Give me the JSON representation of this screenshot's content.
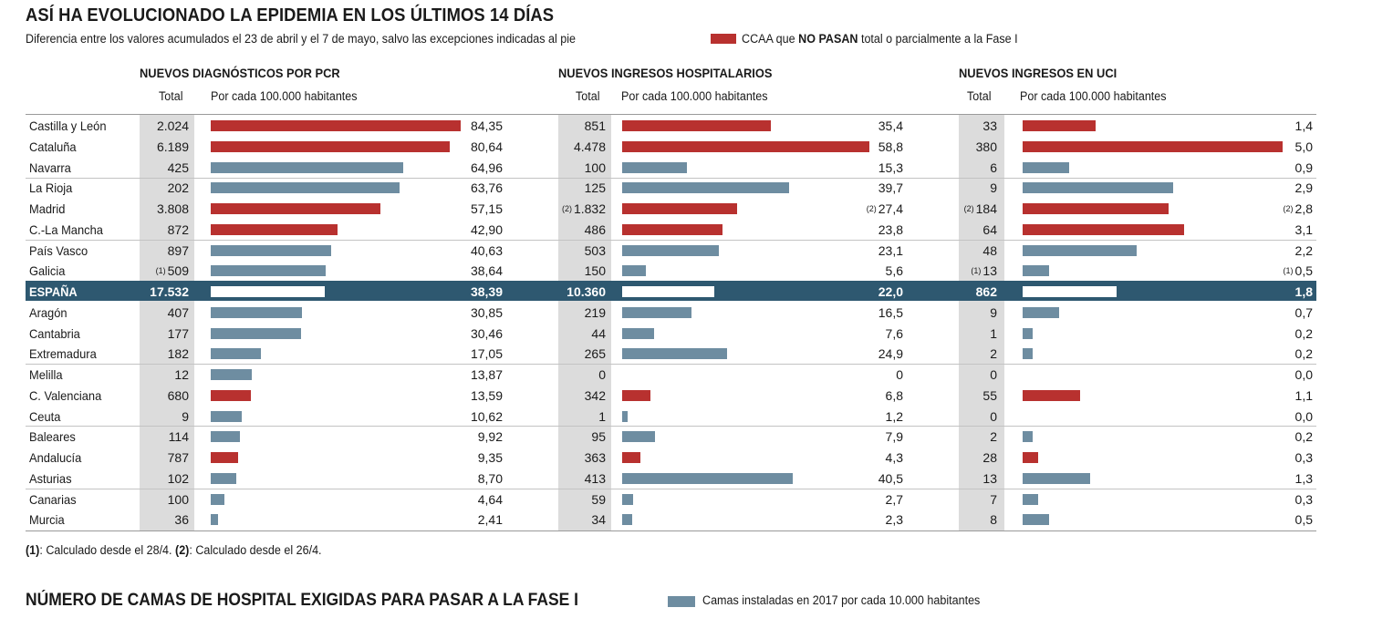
{
  "title": "ASÍ HA EVOLUCIONADO LA EPIDEMIA EN LOS ÚLTIMOS 14 DÍAS",
  "subtitle": "Diferencia entre los valores acumulados el 23 de abril y el 7 de mayo, salvo las excepciones indicadas al pie",
  "legend": {
    "pre": "CCAA que ",
    "bold": "NO PASAN",
    "post": " total o parcialmente a la Fase I",
    "color": "#b8312f"
  },
  "colors": {
    "red": "#b8312f",
    "blue": "#6e8da1",
    "highlight": "#2e5870"
  },
  "sections": [
    {
      "title": "NUEVOS DIAGNÓSTICOS POR PCR",
      "total_label": "Total",
      "rate_label": "Por cada 100.000 habitantes"
    },
    {
      "title": "NUEVOS INGRESOS HOSPITALARIOS",
      "total_label": "Total",
      "rate_label": "Por cada 100.000 habitantes"
    },
    {
      "title": "NUEVOS INGRESOS EN UCI",
      "total_label": "Total",
      "rate_label": "Por cada 100.000 habitantes"
    }
  ],
  "chart_data": {
    "type": "bar",
    "title": "ASÍ HA EVOLUCIONADO LA EPIDEMIA EN LOS ÚLTIMOS 14 DÍAS",
    "series_names": [
      "NUEVOS DIAGNÓSTICOS POR PCR",
      "NUEVOS INGRESOS HOSPITALARIOS",
      "NUEVOS INGRESOS EN UCI"
    ],
    "scale_max": [
      84.35,
      58.8,
      5.0
    ],
    "rows": [
      {
        "name": "Castilla y León",
        "no_pasa": true,
        "pcr": {
          "total": "2.024",
          "rate": "84,35",
          "value": 84.35
        },
        "hosp": {
          "total": "851",
          "rate": "35,4",
          "value": 35.4
        },
        "uci": {
          "total": "33",
          "rate": "1,4",
          "value": 1.4
        }
      },
      {
        "name": "Cataluña",
        "no_pasa": true,
        "pcr": {
          "total": "6.189",
          "rate": "80,64",
          "value": 80.64
        },
        "hosp": {
          "total": "4.478",
          "rate": "58,8",
          "value": 58.8
        },
        "uci": {
          "total": "380",
          "rate": "5,0",
          "value": 5.0
        }
      },
      {
        "name": "Navarra",
        "no_pasa": false,
        "pcr": {
          "total": "425",
          "rate": "64,96",
          "value": 64.96
        },
        "hosp": {
          "total": "100",
          "rate": "15,3",
          "value": 15.3
        },
        "uci": {
          "total": "6",
          "rate": "0,9",
          "value": 0.9
        }
      },
      {
        "name": "La Rioja",
        "no_pasa": false,
        "pcr": {
          "total": "202",
          "rate": "63,76",
          "value": 63.76
        },
        "hosp": {
          "total": "125",
          "rate": "39,7",
          "value": 39.7
        },
        "uci": {
          "total": "9",
          "rate": "2,9",
          "value": 2.9
        }
      },
      {
        "name": "Madrid",
        "no_pasa": true,
        "pcr": {
          "total": "3.808",
          "rate": "57,15",
          "value": 57.15
        },
        "hosp": {
          "total": "1.832",
          "rate": "27,4",
          "value": 27.4,
          "note": "(2)"
        },
        "uci": {
          "total": "184",
          "rate": "2,8",
          "value": 2.8,
          "note": "(2)"
        }
      },
      {
        "name": "C.-La Mancha",
        "no_pasa": true,
        "pcr": {
          "total": "872",
          "rate": "42,90",
          "value": 42.9
        },
        "hosp": {
          "total": "486",
          "rate": "23,8",
          "value": 23.8
        },
        "uci": {
          "total": "64",
          "rate": "3,1",
          "value": 3.1
        }
      },
      {
        "name": "País Vasco",
        "no_pasa": false,
        "pcr": {
          "total": "897",
          "rate": "40,63",
          "value": 40.63
        },
        "hosp": {
          "total": "503",
          "rate": "23,1",
          "value": 23.1
        },
        "uci": {
          "total": "48",
          "rate": "2,2",
          "value": 2.2
        }
      },
      {
        "name": "Galicia",
        "no_pasa": false,
        "pcr": {
          "total": "509",
          "rate": "38,64",
          "value": 38.64,
          "note": "(1)"
        },
        "hosp": {
          "total": "150",
          "rate": "5,6",
          "value": 5.6
        },
        "uci": {
          "total": "13",
          "rate": "0,5",
          "value": 0.5,
          "note": "(1)"
        }
      },
      {
        "name": "ESPAÑA",
        "highlight": true,
        "pcr": {
          "total": "17.532",
          "rate": "38,39",
          "value": 38.39
        },
        "hosp": {
          "total": "10.360",
          "rate": "22,0",
          "value": 22.0
        },
        "uci": {
          "total": "862",
          "rate": "1,8",
          "value": 1.8
        }
      },
      {
        "name": "Aragón",
        "no_pasa": false,
        "pcr": {
          "total": "407",
          "rate": "30,85",
          "value": 30.85
        },
        "hosp": {
          "total": "219",
          "rate": "16,5",
          "value": 16.5
        },
        "uci": {
          "total": "9",
          "rate": "0,7",
          "value": 0.7
        }
      },
      {
        "name": "Cantabria",
        "no_pasa": false,
        "pcr": {
          "total": "177",
          "rate": "30,46",
          "value": 30.46
        },
        "hosp": {
          "total": "44",
          "rate": "7,6",
          "value": 7.6
        },
        "uci": {
          "total": "1",
          "rate": "0,2",
          "value": 0.2
        }
      },
      {
        "name": "Extremadura",
        "no_pasa": false,
        "pcr": {
          "total": "182",
          "rate": "17,05",
          "value": 17.05
        },
        "hosp": {
          "total": "265",
          "rate": "24,9",
          "value": 24.9
        },
        "uci": {
          "total": "2",
          "rate": "0,2",
          "value": 0.2
        }
      },
      {
        "name": "Melilla",
        "no_pasa": false,
        "pcr": {
          "total": "12",
          "rate": "13,87",
          "value": 13.87
        },
        "hosp": {
          "total": "0",
          "rate": "0",
          "value": 0
        },
        "uci": {
          "total": "0",
          "rate": "0,0",
          "value": 0
        }
      },
      {
        "name": "C. Valenciana",
        "no_pasa": true,
        "pcr": {
          "total": "680",
          "rate": "13,59",
          "value": 13.59
        },
        "hosp": {
          "total": "342",
          "rate": "6,8",
          "value": 6.8
        },
        "uci": {
          "total": "55",
          "rate": "1,1",
          "value": 1.1
        }
      },
      {
        "name": "Ceuta",
        "no_pasa": false,
        "pcr": {
          "total": "9",
          "rate": "10,62",
          "value": 10.62
        },
        "hosp": {
          "total": "1",
          "rate": "1,2",
          "value": 1.2
        },
        "uci": {
          "total": "0",
          "rate": "0,0",
          "value": 0
        }
      },
      {
        "name": "Baleares",
        "no_pasa": false,
        "pcr": {
          "total": "114",
          "rate": "9,92",
          "value": 9.92
        },
        "hosp": {
          "total": "95",
          "rate": "7,9",
          "value": 7.9
        },
        "uci": {
          "total": "2",
          "rate": "0,2",
          "value": 0.2
        }
      },
      {
        "name": "Andalucía",
        "no_pasa": true,
        "pcr": {
          "total": "787",
          "rate": "9,35",
          "value": 9.35
        },
        "hosp": {
          "total": "363",
          "rate": "4,3",
          "value": 4.3
        },
        "uci": {
          "total": "28",
          "rate": "0,3",
          "value": 0.3
        }
      },
      {
        "name": "Asturias",
        "no_pasa": false,
        "pcr": {
          "total": "102",
          "rate": "8,70",
          "value": 8.7
        },
        "hosp": {
          "total": "413",
          "rate": "40,5",
          "value": 40.5
        },
        "uci": {
          "total": "13",
          "rate": "1,3",
          "value": 1.3
        }
      },
      {
        "name": "Canarias",
        "no_pasa": false,
        "pcr": {
          "total": "100",
          "rate": "4,64",
          "value": 4.64
        },
        "hosp": {
          "total": "59",
          "rate": "2,7",
          "value": 2.7
        },
        "uci": {
          "total": "7",
          "rate": "0,3",
          "value": 0.3
        }
      },
      {
        "name": "Murcia",
        "no_pasa": false,
        "pcr": {
          "total": "36",
          "rate": "2,41",
          "value": 2.41
        },
        "hosp": {
          "total": "34",
          "rate": "2,3",
          "value": 2.3
        },
        "uci": {
          "total": "8",
          "rate": "0,5",
          "value": 0.5
        }
      }
    ]
  },
  "footnote": {
    "n1": "(1)",
    "t1": ": Calculado desde el 28/4. ",
    "n2": "(2)",
    "t2": ": Calculado desde el 26/4."
  },
  "bottom": {
    "title": "NÚMERO DE CAMAS DE HOSPITAL EXIGIDAS PARA PASAR A LA FASE I",
    "legend": "Camas instaladas en 2017 por cada 10.000 habitantes",
    "legend_color": "#6e8da1"
  }
}
